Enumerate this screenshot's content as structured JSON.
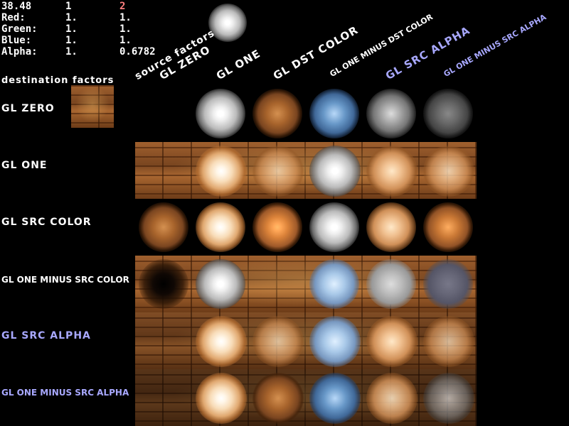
{
  "hud": {
    "fps": "38.48",
    "src_index": "1",
    "dst_index": "2",
    "rows": [
      {
        "label": "Red:",
        "src": "1.",
        "dst": "1."
      },
      {
        "label": "Green:",
        "src": "1.",
        "dst": "1."
      },
      {
        "label": "Blue:",
        "src": "1.",
        "dst": "1."
      },
      {
        "label": "Alpha:",
        "src": "1.",
        "dst": "0.6782"
      }
    ]
  },
  "source_factors_label": "source factors",
  "destination_factors_label": "destination factors",
  "source_factors": [
    {
      "label": "GL ZERO",
      "highlight": false
    },
    {
      "label": "GL ONE",
      "highlight": false
    },
    {
      "label": "GL DST COLOR",
      "highlight": false
    },
    {
      "label": "GL ONE MINUS DST COLOR",
      "highlight": false
    },
    {
      "label": "GL SRC ALPHA",
      "highlight": true
    },
    {
      "label": "GL ONE MINUS SRC ALPHA",
      "highlight": true
    }
  ],
  "destination_factors": [
    {
      "label": "GL ZERO",
      "highlight": false
    },
    {
      "label": "GL ONE",
      "highlight": false
    },
    {
      "label": "GL SRC COLOR",
      "highlight": false
    },
    {
      "label": "GL ONE MINUS SRC COLOR",
      "highlight": false
    },
    {
      "label": "GL SRC ALPHA",
      "highlight": true
    },
    {
      "label": "GL ONE MINUS SRC ALPHA",
      "highlight": true
    }
  ],
  "colors": {
    "text": "#ffffff",
    "highlight": "#a8a8ff",
    "dst_index": "#ff8080",
    "background": "#000000"
  }
}
